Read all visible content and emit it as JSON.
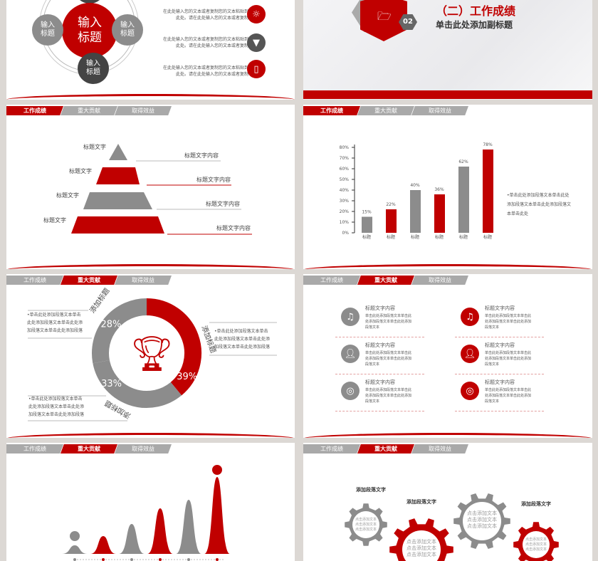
{
  "colors": {
    "accent": "#c00000",
    "grey": "#8c8c8c",
    "dark": "#444444",
    "background": "#dcd8d4"
  },
  "tabs": [
    "工作成绩",
    "重大贡献",
    "取得效益"
  ],
  "slide1": {
    "center": "输入标题",
    "left": "输入标题",
    "right": "输入标题",
    "bottom": "输入标题",
    "items": [
      {
        "line1": "在此处输入您的文本或者复制您的文本粘贴到",
        "line2": "此处。请在此处输入您的文本或者复制",
        "icon": "lightbulb-icon"
      },
      {
        "line1": "在此处输入您的文本或者复制您的文本粘贴到",
        "line2": "此处。请在此处输入您的文本或者复制",
        "icon": "funnel-icon"
      },
      {
        "line1": "在此处输入您的文本或者复制您的文本粘贴到",
        "line2": "此处。请在此处输入您的文本或者复制",
        "icon": "door-hanger-icon"
      }
    ]
  },
  "slide2": {
    "title": "（二）工作成绩",
    "subtitle": "单击此处添加副标题",
    "number": "02",
    "icon": "folder-icon"
  },
  "slide3": {
    "levels": [
      {
        "title": "标题文字",
        "content": "标题文字内容"
      },
      {
        "title": "标题文字",
        "content": "标题文字内容"
      },
      {
        "title": "标题文字",
        "content": "标题文字内容"
      },
      {
        "title": "标题文字",
        "content": "标题文字内容"
      }
    ]
  },
  "chart_data": {
    "type": "bar",
    "categories": [
      "标题",
      "标题",
      "标题",
      "标题",
      "标题",
      "标题"
    ],
    "values": [
      15,
      22,
      40,
      36,
      62,
      78
    ],
    "data_labels": [
      "15%",
      "22%",
      "40%",
      "36%",
      "62%",
      "78%"
    ],
    "bar_colors": [
      "#8c8c8c",
      "#c00000",
      "#8c8c8c",
      "#c00000",
      "#8c8c8c",
      "#c00000"
    ],
    "yticks": [
      "0%",
      "10%",
      "20%",
      "30%",
      "40%",
      "50%",
      "60%",
      "70%",
      "80%"
    ],
    "ylim": [
      0,
      80
    ],
    "note": "•单击此处添加段落文本单击此处添加段落文本单击此处添加段落文本单击此处"
  },
  "slide5": {
    "segments": [
      {
        "label": "添加标题",
        "value": "39%",
        "pct": 39,
        "color": "#c00000"
      },
      {
        "label": "添加标题",
        "value": "33%",
        "pct": 33,
        "color": "#8c8c8c"
      },
      {
        "label": "添加标题",
        "value": "28%",
        "pct": 28,
        "color": "#8c8c8c"
      }
    ],
    "notes": [
      "•单击此处添加段落文本单击此处添加段落文本单击此处添加段落文本单击此处添加段落",
      "•单击此处添加段落文本单击此处添加段落文本单击此处添加段落文本单击此处添加段落",
      "•单击此处添加段落文本单击此处添加段落文本单击此处添加段落文本单击此处添加段落"
    ],
    "icon": "trophy-icon"
  },
  "slide6": {
    "items": [
      {
        "title": "标题文字内容",
        "body": "单击此处添加段落文本单击此处添加段落文本单击此处添加段落文本",
        "icon": "music-icon"
      },
      {
        "title": "标题文字内容",
        "body": "单击此处添加段落文本单击此处添加段落文本单击此处添加段落文本",
        "icon": "music-icon"
      },
      {
        "title": "标题文字内容",
        "body": "单击此处添加段落文本单击此处添加段落文本单击此处添加段落文本",
        "icon": "person-icon"
      },
      {
        "title": "标题文字内容",
        "body": "单击此处添加段落文本单击此处添加段落文本单击此处添加段落文本",
        "icon": "person-icon"
      },
      {
        "title": "标题文字内容",
        "body": "单击此处添加段落文本单击此处添加段落文本单击此处添加段落文本",
        "icon": "globe-icon"
      },
      {
        "title": "标题文字内容",
        "body": "单击此处添加段落文本单击此处添加段落文本单击此处添加段落文本",
        "icon": "globe-icon"
      }
    ]
  },
  "slide8": {
    "gears": [
      {
        "heading": "添加段落文字",
        "text": "点击添加文本\n点击添加文本\n点击添加文本"
      },
      {
        "heading": "添加段落文字",
        "text": "点击添加文本\n点击添加文本\n点击添加文本"
      },
      {
        "heading": "",
        "text": "点击添加文本\n点击添加文本\n点击添加文本"
      },
      {
        "heading": "添加段落文字",
        "text": "点击添加文本\n点击添加文本\n点击添加文本"
      }
    ]
  }
}
